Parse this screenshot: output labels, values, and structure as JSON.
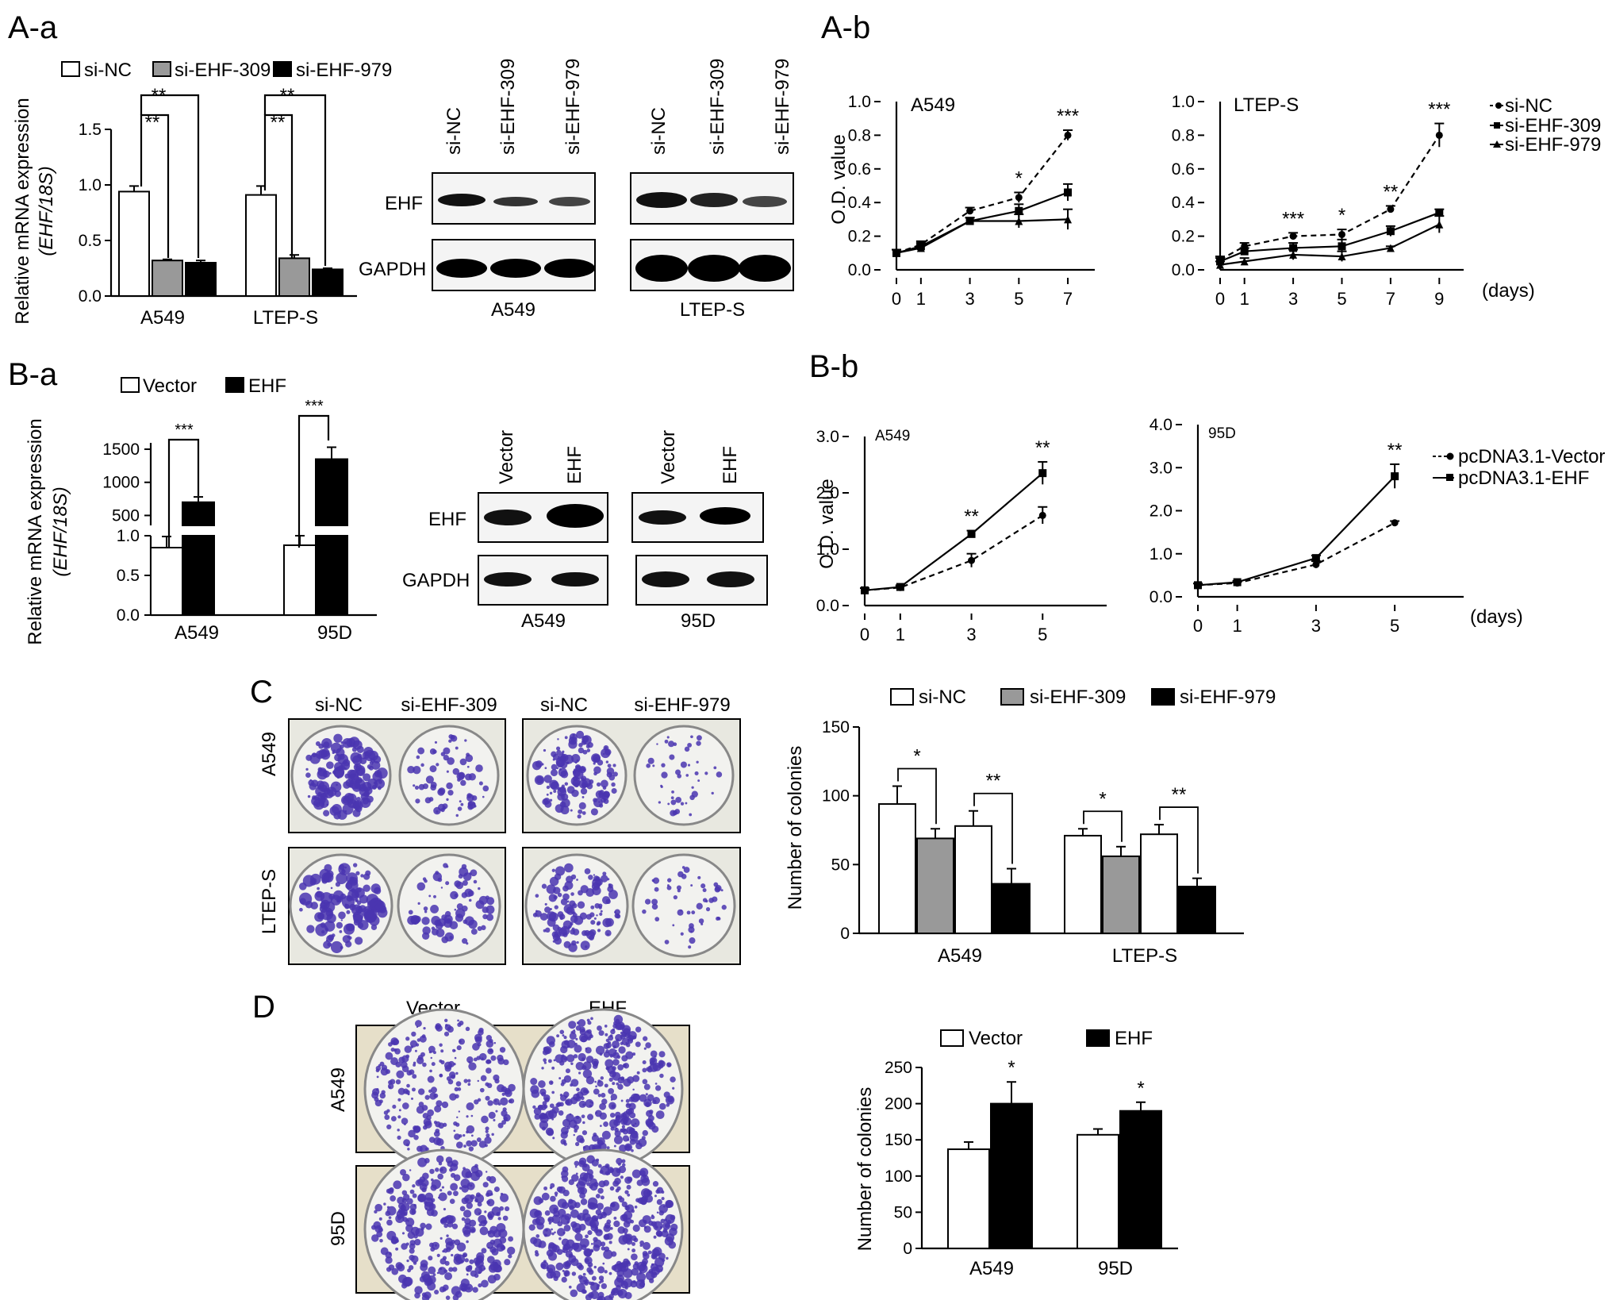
{
  "panel_labels": {
    "Aa": "A-a",
    "Ab": "A-b",
    "Ba": "B-a",
    "Bb": "B-b",
    "C": "C",
    "D": "D"
  },
  "colors": {
    "white_bar": "#ffffff",
    "grey_bar": "#999999",
    "black_bar": "#000000",
    "crystal_violet": "#4a35b0",
    "plate_bg": "#e8e8e0",
    "plate_bg_D": "#e6dfc9"
  },
  "chart_data": [
    {
      "id": "Aa-qpcr",
      "type": "bar",
      "ylabel": "Relative mRNA expression",
      "ylabel_italic": "(EHF/18S)",
      "categories": [
        "A549",
        "LTEP-S"
      ],
      "yticks": [
        "0.0",
        "0.5",
        "1.0",
        "1.5"
      ],
      "ylim": [
        0,
        1.5
      ],
      "series": [
        {
          "name": "si-NC",
          "values": [
            0.94,
            0.91
          ],
          "err": [
            0.05,
            0.08
          ],
          "color": "#ffffff"
        },
        {
          "name": "si-EHF-309",
          "values": [
            0.32,
            0.34
          ],
          "err": [
            0.01,
            0.03
          ],
          "color": "#999999"
        },
        {
          "name": "si-EHF-979",
          "values": [
            0.3,
            0.24
          ],
          "err": [
            0.02,
            0.01
          ],
          "color": "#000000"
        }
      ],
      "significance": [
        "**",
        "**",
        "**",
        "**"
      ]
    },
    {
      "id": "Ab-A549",
      "type": "line",
      "title": "A549",
      "ylabel": "O.D. value",
      "x": [
        0,
        1,
        3,
        5,
        7
      ],
      "xticks": [
        "0",
        "1",
        "3",
        "5",
        "7"
      ],
      "yticks": [
        "0.0",
        "0.2",
        "0.4",
        "0.6",
        "0.8",
        "1.0"
      ],
      "ylim": [
        0,
        1.0
      ],
      "series": [
        {
          "name": "si-NC",
          "values": [
            0.1,
            0.15,
            0.35,
            0.43,
            0.8
          ],
          "err": [
            0.02,
            0.02,
            0.02,
            0.03,
            0.03
          ],
          "style": "dashed",
          "marker": "circle"
        },
        {
          "name": "si-EHF-309",
          "values": [
            0.1,
            0.14,
            0.29,
            0.35,
            0.46
          ],
          "err": [
            0.02,
            0.02,
            0.02,
            0.04,
            0.05
          ],
          "style": "solid",
          "marker": "square"
        },
        {
          "name": "si-EHF-979",
          "values": [
            0.1,
            0.13,
            0.29,
            0.29,
            0.3
          ],
          "err": [
            0.02,
            0.02,
            0.02,
            0.04,
            0.06
          ],
          "style": "solid",
          "marker": "triangle"
        }
      ],
      "significance": [
        {
          "x": 5,
          "text": "*"
        },
        {
          "x": 7,
          "text": "***"
        }
      ]
    },
    {
      "id": "Ab-LTEP-S",
      "type": "line",
      "title": "LTEP-S",
      "xunit": "(days)",
      "x": [
        0,
        1,
        3,
        5,
        7,
        9
      ],
      "xticks": [
        "0",
        "1",
        "3",
        "5",
        "7",
        "9"
      ],
      "yticks": [
        "0.0",
        "0.2",
        "0.4",
        "0.6",
        "0.8",
        "1.0"
      ],
      "ylim": [
        0,
        1.0
      ],
      "series": [
        {
          "name": "si-NC",
          "values": [
            0.06,
            0.14,
            0.2,
            0.21,
            0.36,
            0.8
          ],
          "err": [
            0.02,
            0.02,
            0.02,
            0.03,
            0.02,
            0.07
          ],
          "style": "dashed",
          "marker": "circle"
        },
        {
          "name": "si-EHF-309",
          "values": [
            0.05,
            0.11,
            0.13,
            0.14,
            0.23,
            0.34
          ],
          "err": [
            0.02,
            0.02,
            0.03,
            0.04,
            0.03,
            0.02
          ],
          "style": "solid",
          "marker": "square"
        },
        {
          "name": "si-EHF-979",
          "values": [
            0.03,
            0.05,
            0.09,
            0.08,
            0.13,
            0.27
          ],
          "err": [
            0.02,
            0.02,
            0.03,
            0.03,
            0.01,
            0.05
          ],
          "style": "solid",
          "marker": "triangle"
        }
      ],
      "significance": [
        {
          "x": 3,
          "text": "***"
        },
        {
          "x": 5,
          "text": "*"
        },
        {
          "x": 7,
          "text": "**"
        },
        {
          "x": 9,
          "text": "***"
        }
      ]
    },
    {
      "id": "Ba-qpcr",
      "type": "bar",
      "ylabel": "Relative mRNA expression",
      "ylabel_italic": "(EHF/18S)",
      "categories": [
        "A549",
        "95D"
      ],
      "yticks_lower": [
        "0.0",
        "0.5",
        "1.0"
      ],
      "yticks_upper": [
        "500",
        "1000",
        "1500"
      ],
      "axis_break": true,
      "series": [
        {
          "name": "Vector",
          "values": [
            0.85,
            0.88
          ],
          "err": [
            0.14,
            0.12
          ],
          "color": "#ffffff"
        },
        {
          "name": "EHF",
          "values": [
            700,
            1350
          ],
          "err": [
            80,
            180
          ],
          "color": "#000000"
        }
      ],
      "significance": [
        "***",
        "***"
      ]
    },
    {
      "id": "Bb-A549",
      "type": "line",
      "title": "A549",
      "ylabel": "O.D. value",
      "x": [
        0,
        1,
        3,
        5
      ],
      "xticks": [
        "0",
        "1",
        "3",
        "5"
      ],
      "yticks": [
        "0.0",
        "1.0",
        "2.0",
        "3.0"
      ],
      "ylim": [
        0,
        3.0
      ],
      "series": [
        {
          "name": "pcDNA3.1-Vector",
          "values": [
            0.27,
            0.32,
            0.8,
            1.6
          ],
          "err": [
            0.04,
            0.03,
            0.12,
            0.15
          ],
          "style": "dashed",
          "marker": "circle"
        },
        {
          "name": "pcDNA3.1-EHF",
          "values": [
            0.27,
            0.33,
            1.27,
            2.35
          ],
          "err": [
            0.04,
            0.03,
            0.06,
            0.2
          ],
          "style": "solid",
          "marker": "square"
        }
      ],
      "significance": [
        {
          "x": 3,
          "text": "**"
        },
        {
          "x": 5,
          "text": "**"
        }
      ]
    },
    {
      "id": "Bb-95D",
      "type": "line",
      "title": "95D",
      "xunit": "(days)",
      "x": [
        0,
        1,
        3,
        5
      ],
      "xticks": [
        "0",
        "1",
        "3",
        "5"
      ],
      "yticks": [
        "0.0",
        "1.0",
        "2.0",
        "3.0",
        "4.0"
      ],
      "ylim": [
        0,
        4.0
      ],
      "series": [
        {
          "name": "pcDNA3.1-Vector",
          "values": [
            0.27,
            0.32,
            0.75,
            1.72
          ],
          "err": [
            0.04,
            0.03,
            0.08,
            0.04
          ],
          "style": "dashed",
          "marker": "circle"
        },
        {
          "name": "pcDNA3.1-EHF",
          "values": [
            0.27,
            0.34,
            0.9,
            2.8
          ],
          "err": [
            0.04,
            0.03,
            0.06,
            0.28
          ],
          "style": "solid",
          "marker": "square"
        }
      ],
      "significance": [
        {
          "x": 5,
          "text": "**"
        }
      ]
    },
    {
      "id": "C-colonies",
      "type": "bar",
      "ylabel": "Number of colonies",
      "categories": [
        "A549",
        "LTEP-S"
      ],
      "yticks": [
        "0",
        "50",
        "100",
        "150"
      ],
      "ylim": [
        0,
        150
      ],
      "groups": [
        {
          "bars": [
            {
              "name": "si-NC",
              "value": 94,
              "err": 13,
              "color": "#ffffff"
            },
            {
              "name": "si-EHF-309",
              "value": 69,
              "err": 7,
              "color": "#999999"
            },
            {
              "name": "si-NC",
              "value": 78,
              "err": 11,
              "color": "#ffffff"
            },
            {
              "name": "si-EHF-979",
              "value": 36,
              "err": 11,
              "color": "#000000"
            }
          ]
        },
        {
          "bars": [
            {
              "name": "si-NC",
              "value": 71,
              "err": 5,
              "color": "#ffffff"
            },
            {
              "name": "si-EHF-309",
              "value": 56,
              "err": 7,
              "color": "#999999"
            },
            {
              "name": "si-NC",
              "value": 72,
              "err": 7,
              "color": "#ffffff"
            },
            {
              "name": "si-EHF-979",
              "value": 34,
              "err": 6,
              "color": "#000000"
            }
          ]
        }
      ],
      "legend": [
        "si-NC",
        "si-EHF-309",
        "si-EHF-979"
      ],
      "significance": [
        "*",
        "**",
        "*",
        "**"
      ]
    },
    {
      "id": "D-colonies",
      "type": "bar",
      "ylabel": "Number of colonies",
      "categories": [
        "A549",
        "95D"
      ],
      "yticks": [
        "0",
        "50",
        "100",
        "150",
        "200",
        "250"
      ],
      "ylim": [
        0,
        250
      ],
      "series": [
        {
          "name": "Vector",
          "values": [
            137,
            157
          ],
          "err": [
            10,
            8
          ],
          "color": "#ffffff"
        },
        {
          "name": "EHF",
          "values": [
            200,
            190
          ],
          "err": [
            30,
            12
          ],
          "color": "#000000"
        }
      ],
      "significance": [
        "*",
        "*"
      ]
    }
  ],
  "blots": {
    "Aa_lanes": [
      "si-NC",
      "si-EHF-309",
      "si-EHF-979"
    ],
    "Aa_cells": [
      "A549",
      "LTEP-S"
    ],
    "Ba_lanes": [
      "Vector",
      "EHF"
    ],
    "Ba_cells": [
      "A549",
      "95D"
    ],
    "rows": [
      "EHF",
      "GAPDH"
    ]
  },
  "plates": {
    "C_cols": [
      "si-NC",
      "si-EHF-309",
      "si-NC",
      "si-EHF-979"
    ],
    "C_rows": [
      "A549",
      "LTEP-S"
    ],
    "D_cols": [
      "Vector",
      "EHF"
    ],
    "D_rows": [
      "A549",
      "95D"
    ]
  }
}
